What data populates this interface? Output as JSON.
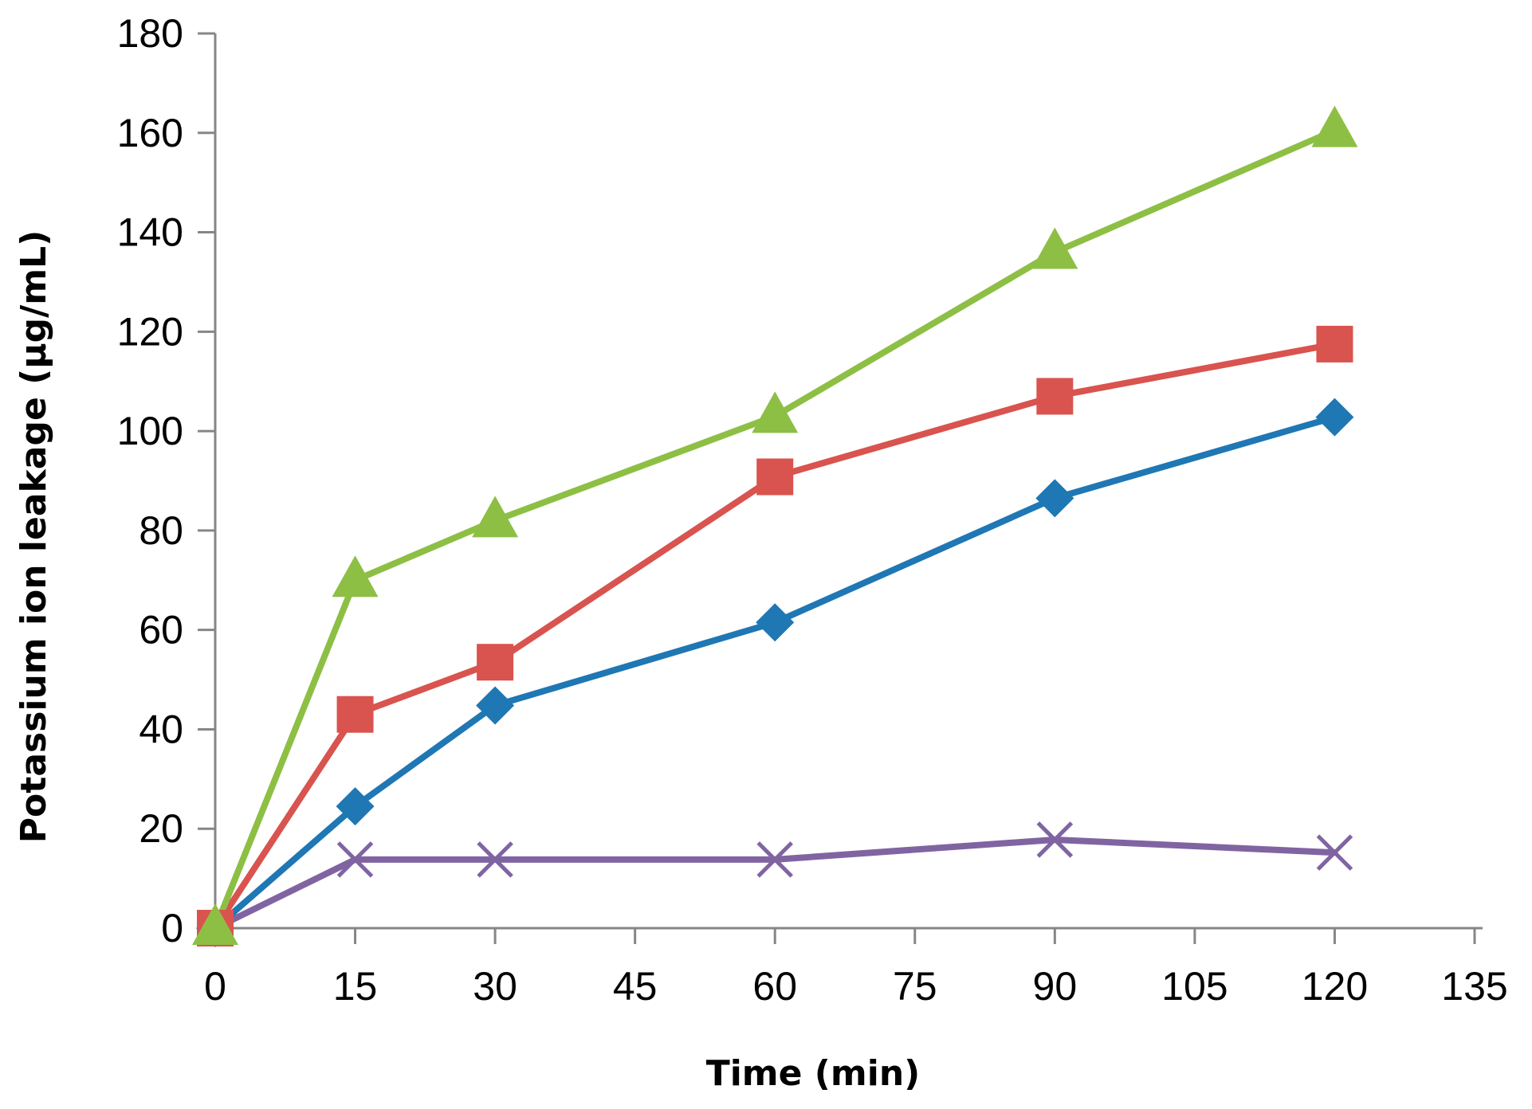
{
  "chart_data": {
    "type": "line",
    "title": "",
    "xlabel": "Time (min)",
    "ylabel": "Potassium ion leakage (µg/mL)",
    "xlim": [
      0,
      135
    ],
    "ylim": [
      0,
      180
    ],
    "xticks": [
      0,
      15,
      30,
      45,
      60,
      75,
      90,
      105,
      120,
      135
    ],
    "yticks": [
      0,
      20,
      40,
      60,
      80,
      100,
      120,
      140,
      160,
      180
    ],
    "x": [
      0,
      15,
      30,
      60,
      90,
      120
    ],
    "grid": false,
    "legend": "none",
    "series": [
      {
        "marker": "diamond",
        "color": "#1f77b4",
        "values": [
          0,
          24.5,
          44.8,
          61.5,
          86.5,
          102.8
        ]
      },
      {
        "marker": "square",
        "color": "#d9534f",
        "values": [
          0,
          43,
          53.5,
          90.8,
          107,
          117.5
        ]
      },
      {
        "marker": "triangle",
        "color": "#8dbf45",
        "values": [
          0,
          70,
          82,
          103,
          136,
          160.5
        ]
      },
      {
        "marker": "x",
        "color": "#8064a2",
        "values": [
          0,
          13.8,
          13.8,
          13.8,
          17.8,
          15.2
        ]
      }
    ]
  }
}
